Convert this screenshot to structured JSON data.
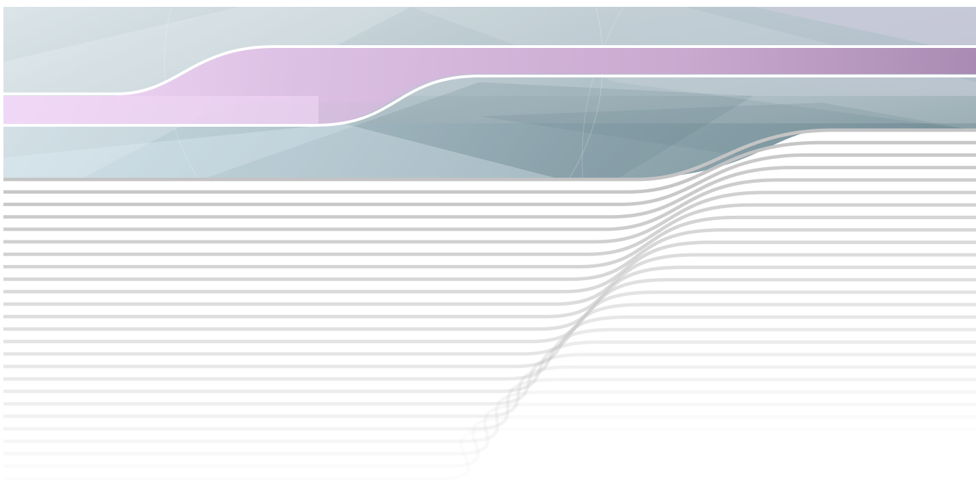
{
  "background": {
    "page_color": "#ffffff",
    "header_colors": {
      "teal_light": "#d9e4e8",
      "teal_mid": "#a8bcc3",
      "teal_dark": "#7e9aa3",
      "lavender": "#c9b6d6",
      "purple": "#b089b8",
      "pink_light": "#f0d6f5",
      "wave_outline": "#ffffff"
    },
    "stripe_color": "#c4c4c4",
    "stripe_count": 25
  }
}
